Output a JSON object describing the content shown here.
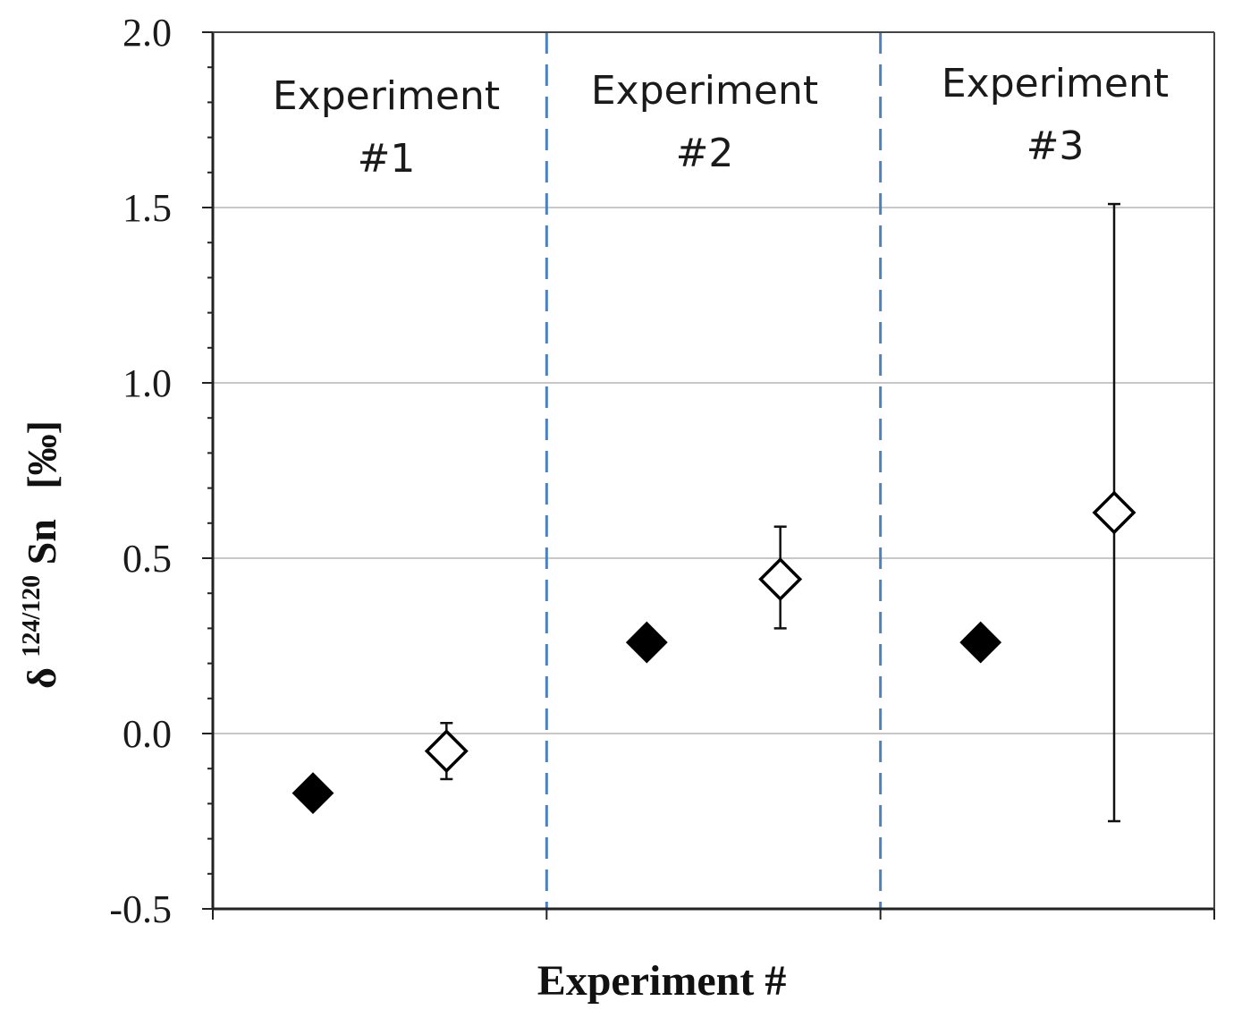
{
  "chart_data": {
    "type": "scatter",
    "title": "",
    "xlabel": "Experiment #",
    "ylabel": {
      "prefix": "δ ",
      "superscript": "124/120",
      "main": "Sn",
      "unit": "[‰]"
    },
    "ylim": [
      -0.5,
      2.0
    ],
    "y_ticks": [
      "-0.5",
      "0.0",
      "0.5",
      "1.0",
      "1.5",
      "2.0"
    ],
    "y_tick_values": [
      -0.5,
      0.0,
      0.5,
      1.0,
      1.5,
      2.0
    ],
    "xlim": [
      0,
      3
    ],
    "section_dividers": [
      1,
      2
    ],
    "sections": [
      {
        "line1": "Experiment",
        "line2": "#1"
      },
      {
        "line1": "Experiment",
        "line2": "#2"
      },
      {
        "line1": "Experiment",
        "line2": "#3"
      }
    ],
    "grid": "horizontal",
    "legend": "none",
    "colors": {
      "filled_marker": "#000000",
      "open_marker_stroke": "#000000",
      "divider": "#4f81bd",
      "grid": "#c8c8c8"
    },
    "series": [
      {
        "marker": "filled-diamond",
        "points": [
          {
            "x": 0.3,
            "y": -0.17
          },
          {
            "x": 1.3,
            "y": 0.26
          },
          {
            "x": 2.3,
            "y": 0.26
          }
        ]
      },
      {
        "marker": "open-diamond",
        "points": [
          {
            "x": 0.7,
            "y": -0.05,
            "err_low": -0.13,
            "err_high": 0.03
          },
          {
            "x": 1.7,
            "y": 0.44,
            "err_low": 0.3,
            "err_high": 0.59
          },
          {
            "x": 2.7,
            "y": 0.63,
            "err_low": -0.25,
            "err_high": 1.51
          }
        ]
      }
    ]
  }
}
